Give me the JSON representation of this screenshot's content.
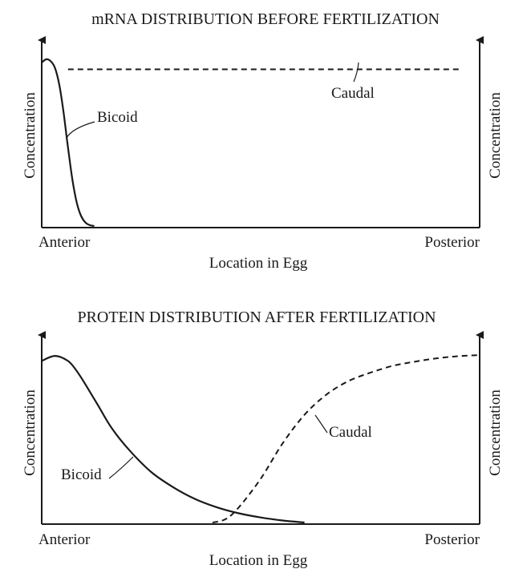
{
  "chart_data": [
    {
      "type": "line",
      "title": "mRNA DISTRIBUTION BEFORE FERTILIZATION",
      "xlabel": "Location in Egg",
      "ylabel": "Concentration",
      "ylabel_right": "Concentration",
      "x_tick_labels": [
        "Anterior",
        "Posterior"
      ],
      "xlim": [
        0,
        1
      ],
      "ylim": [
        0,
        1
      ],
      "grid": false,
      "series": [
        {
          "name": "Bicoid",
          "style": "solid",
          "x": [
            0,
            0.01,
            0.02,
            0.03,
            0.04,
            0.05,
            0.06,
            0.07,
            0.08,
            0.09,
            0.1,
            0.11,
            0.12
          ],
          "values": [
            0.98,
            1.0,
            0.99,
            0.95,
            0.85,
            0.68,
            0.47,
            0.28,
            0.14,
            0.06,
            0.02,
            0.005,
            0.0
          ]
        },
        {
          "name": "Caudal",
          "style": "dashed",
          "x": [
            0.06,
            0.96
          ],
          "values": [
            0.94,
            0.94
          ]
        }
      ]
    },
    {
      "type": "line",
      "title": "PROTEIN DISTRIBUTION AFTER FERTILIZATION",
      "xlabel": "Location in Egg",
      "ylabel": "Concentration",
      "ylabel_right": "Concentration",
      "x_tick_labels": [
        "Anterior",
        "Posterior"
      ],
      "xlim": [
        0,
        1
      ],
      "ylim": [
        0,
        1
      ],
      "grid": false,
      "series": [
        {
          "name": "Bicoid",
          "style": "solid",
          "x": [
            0,
            0.03,
            0.06,
            0.08,
            0.1,
            0.13,
            0.16,
            0.2,
            0.25,
            0.3,
            0.35,
            0.4,
            0.45,
            0.5,
            0.55,
            0.6
          ],
          "values": [
            0.96,
            0.99,
            0.96,
            0.9,
            0.82,
            0.69,
            0.56,
            0.43,
            0.3,
            0.21,
            0.14,
            0.09,
            0.055,
            0.03,
            0.012,
            0.0
          ]
        },
        {
          "name": "Caudal",
          "style": "dashed",
          "x": [
            0.39,
            0.42,
            0.45,
            0.5,
            0.55,
            0.6,
            0.65,
            0.7,
            0.75,
            0.8,
            0.85,
            0.9,
            0.95,
            1.0
          ],
          "values": [
            0.0,
            0.02,
            0.09,
            0.26,
            0.47,
            0.64,
            0.76,
            0.84,
            0.89,
            0.93,
            0.955,
            0.975,
            0.988,
            0.995
          ]
        }
      ]
    }
  ]
}
